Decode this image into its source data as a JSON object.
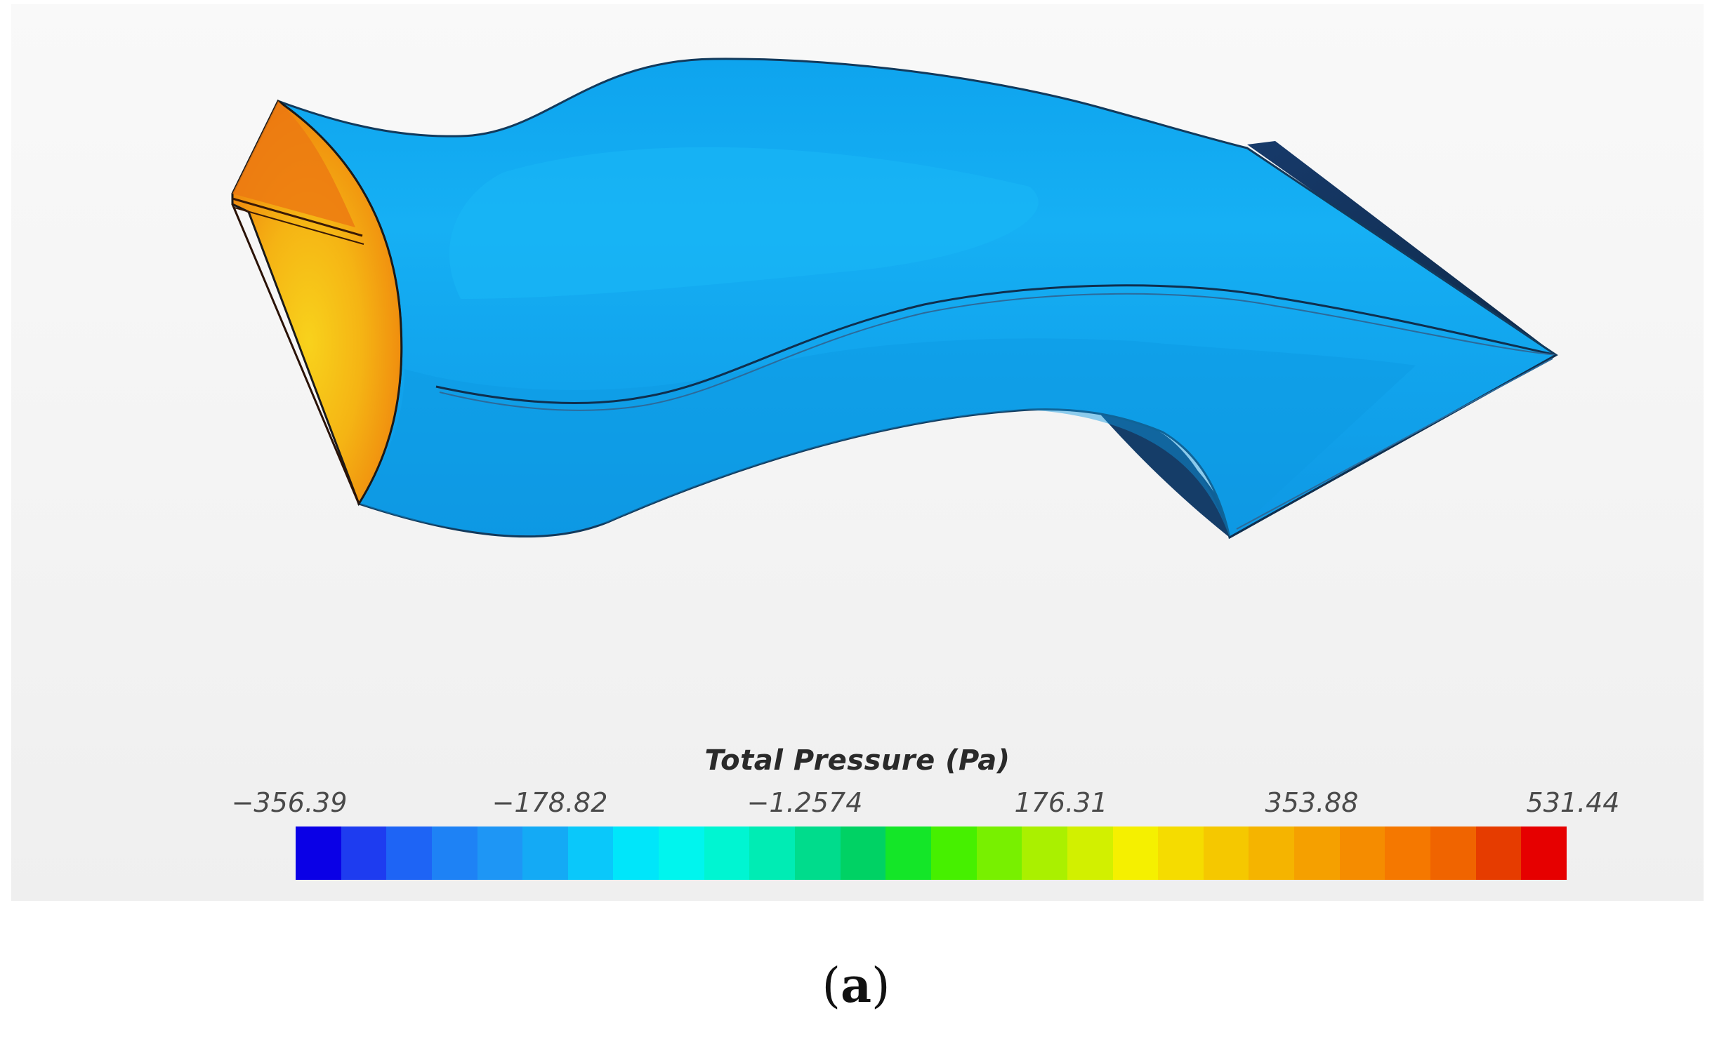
{
  "legend": {
    "title": "Total Pressure (Pa)",
    "ticks": [
      "−356.39",
      "−178.82",
      "−1.2574",
      "176.31",
      "353.88",
      "531.44"
    ],
    "min": -356.39,
    "max": 531.44,
    "colors": [
      "#0a00e6",
      "#1e3cf0",
      "#1e64f5",
      "#1e82f5",
      "#1e96f5",
      "#14aaf5",
      "#0ac8fa",
      "#00e6fa",
      "#00f5ee",
      "#00f5d2",
      "#00ecb4",
      "#00dc8c",
      "#00d264",
      "#14e628",
      "#46f000",
      "#78f000",
      "#aaf000",
      "#d2f000",
      "#f5f000",
      "#f5dc00",
      "#f5c800",
      "#f5b400",
      "#f5a000",
      "#f58c00",
      "#f57800",
      "#f06400",
      "#e63c00",
      "#e60000"
    ]
  },
  "field_colors": {
    "body": "#11a6ee",
    "body_dark": "#0c8ad8",
    "inlet_face": "#f5a20e",
    "inlet_edge": "#e46a0c",
    "outlet_face": "#1e3c63"
  },
  "caption": {
    "label": "a",
    "open": "(",
    "close": ")"
  }
}
